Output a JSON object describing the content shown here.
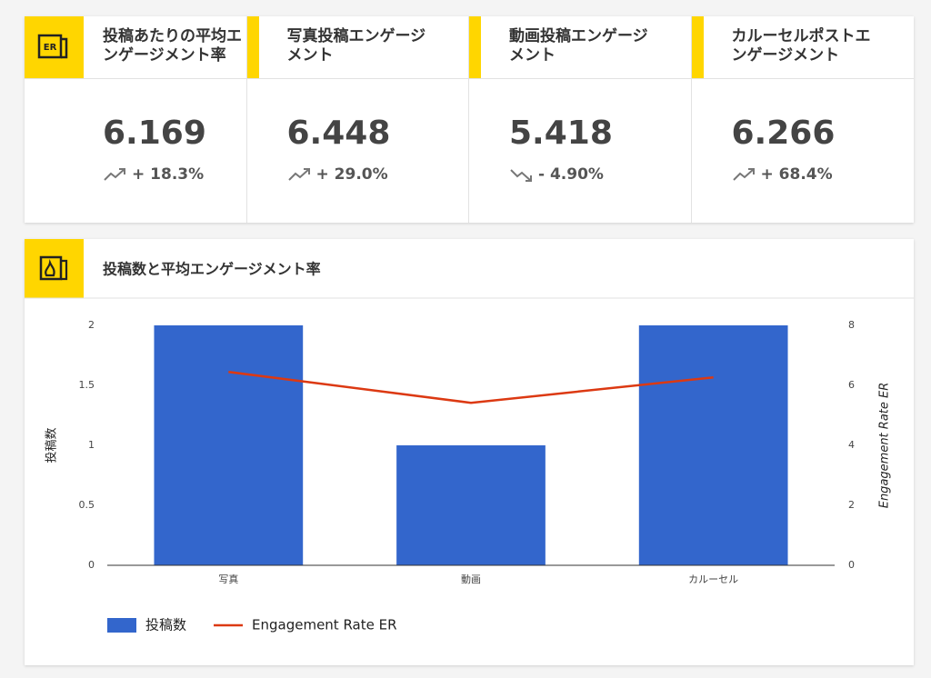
{
  "cards": [
    {
      "title": "投稿あたりの平均エンゲージメント率",
      "value": 6.169,
      "change": "+ 18.3%",
      "trend": "up"
    },
    {
      "title": "写真投稿エンゲージメント",
      "value": 6.448,
      "change": "+ 29.0%",
      "trend": "up"
    },
    {
      "title": "動画投稿エンゲージメント",
      "value": 5.418,
      "change": "- 4.90%",
      "trend": "down"
    },
    {
      "title": "カルーセルポストエンゲージメント",
      "value": 6.266,
      "change": "+ 68.4%",
      "trend": "up"
    }
  ],
  "chart_data": {
    "type": "bar",
    "title": "投稿数と平均エンゲージメント率",
    "categories": [
      "写真",
      "動画",
      "カルーセル"
    ],
    "series": [
      {
        "name": "投稿数",
        "color": "#3366cc",
        "type": "bar",
        "values": [
          2,
          1,
          2
        ]
      },
      {
        "name": "Engagement Rate ER",
        "color": "#dc3912",
        "type": "line",
        "axis": "y2",
        "values": [
          6.448,
          5.418,
          6.266
        ]
      }
    ],
    "y_label": "投稿数",
    "y2_label": "Engagement Rate ER",
    "ylim": [
      0,
      2
    ],
    "yticks": [
      0,
      0.5,
      1,
      1.5,
      2
    ],
    "y2lim": [
      0,
      8
    ],
    "y2ticks": [
      0,
      2,
      4,
      6,
      8
    ],
    "legend": "bottom"
  }
}
